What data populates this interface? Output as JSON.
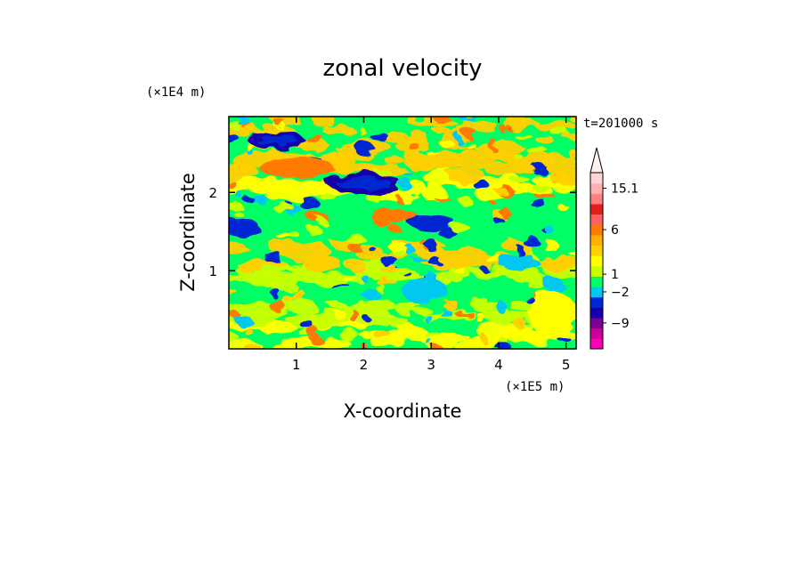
{
  "chart_data": {
    "type": "heatmap",
    "title": "zonal velocity",
    "xlabel": "X-coordinate",
    "ylabel": "Z-coordinate",
    "x_unit": "(×1E5 m)",
    "y_unit": "(×1E4 m)",
    "time_label": "t=201000 s",
    "xlim": [
      0,
      5.15
    ],
    "ylim": [
      0,
      2.97
    ],
    "x_ticks": [
      "1",
      "2",
      "3",
      "4",
      "5"
    ],
    "y_ticks": [
      "1",
      "2"
    ],
    "colorbar": {
      "max_label": "15.1",
      "labels": [
        "15.1",
        "6",
        "1",
        "−2",
        "−9"
      ],
      "colors": [
        "#ff00b4",
        "#cc0099",
        "#7f0099",
        "#1400aa",
        "#0028d2",
        "#00c8f0",
        "#00ff64",
        "#c8ff00",
        "#ffff00",
        "#ffd000",
        "#ffb000",
        "#ff7a00",
        "#ff6060",
        "#e02020",
        "#ff8080",
        "#ffb0b0",
        "#ffd4d4"
      ]
    },
    "fields": [
      {
        "name": "bg",
        "color": "#00ff64"
      },
      {
        "name": "yellow-green",
        "color": "#c8ff00"
      },
      {
        "name": "yellow",
        "color": "#ffff00"
      },
      {
        "name": "gold",
        "color": "#ffd000"
      },
      {
        "name": "orange",
        "color": "#ff7a00"
      },
      {
        "name": "cyan",
        "color": "#00c8f0"
      },
      {
        "name": "blue",
        "color": "#0028d2"
      },
      {
        "name": "dark-blue",
        "color": "#1400aa"
      }
    ],
    "features": [
      {
        "kind": "blob",
        "field": "dark-blue",
        "x": 0.7,
        "z": 2.67,
        "rx": 0.42,
        "rz": 0.11
      },
      {
        "kind": "blob",
        "field": "orange",
        "x": 1.0,
        "z": 2.32,
        "rx": 0.55,
        "rz": 0.13
      },
      {
        "kind": "blob",
        "field": "dark-blue",
        "x": 2.0,
        "z": 2.12,
        "rx": 0.55,
        "rz": 0.14
      },
      {
        "kind": "blob",
        "field": "orange",
        "x": 2.45,
        "z": 1.7,
        "rx": 0.35,
        "rz": 0.1
      },
      {
        "kind": "blob",
        "field": "blue",
        "x": 3.0,
        "z": 1.62,
        "rx": 0.35,
        "rz": 0.1
      },
      {
        "kind": "blob",
        "field": "blue",
        "x": 0.2,
        "z": 1.55,
        "rx": 0.25,
        "rz": 0.12
      },
      {
        "kind": "blob",
        "field": "cyan",
        "x": 2.9,
        "z": 0.75,
        "rx": 0.35,
        "rz": 0.15
      },
      {
        "kind": "blob",
        "field": "cyan",
        "x": 4.3,
        "z": 1.1,
        "rx": 0.3,
        "rz": 0.1
      },
      {
        "kind": "blob",
        "field": "yellow",
        "x": 4.8,
        "z": 0.45,
        "rx": 0.35,
        "rz": 0.3
      }
    ]
  }
}
